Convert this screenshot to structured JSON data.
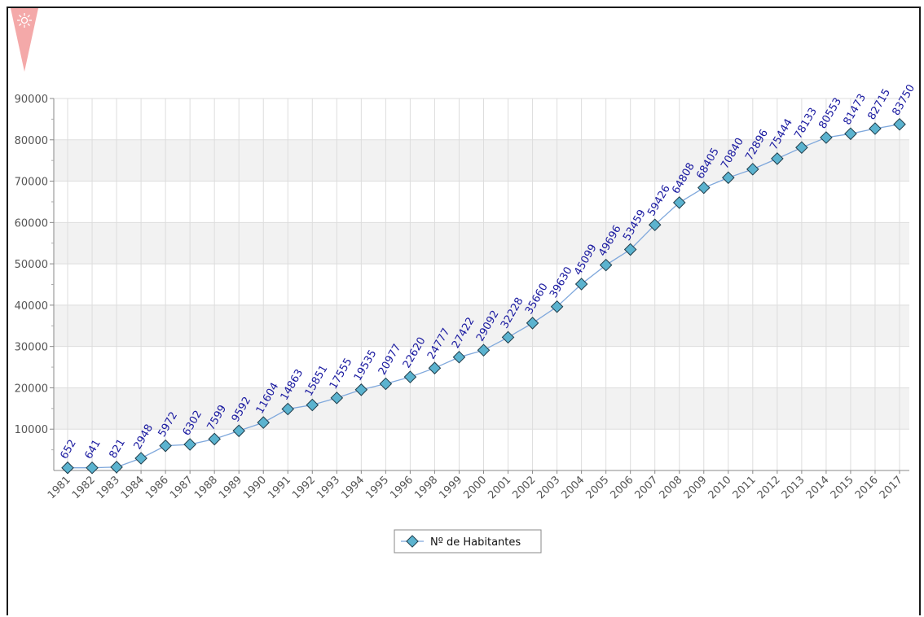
{
  "chart_data": {
    "type": "line",
    "categories": [
      "1981",
      "1982",
      "1983",
      "1984",
      "1986",
      "1987",
      "1988",
      "1989",
      "1990",
      "1991",
      "1992",
      "1993",
      "1994",
      "1995",
      "1996",
      "1998",
      "1999",
      "2000",
      "2001",
      "2002",
      "2003",
      "2004",
      "2005",
      "2006",
      "2007",
      "2008",
      "2009",
      "2010",
      "2011",
      "2012",
      "2013",
      "2014",
      "2015",
      "2016",
      "2017"
    ],
    "series": [
      {
        "name": "Nº de Habitantes",
        "values": [
          652,
          641,
          821,
          2948,
          5972,
          6302,
          7599,
          9592,
          11604,
          14863,
          15851,
          17555,
          19535,
          20977,
          22620,
          24777,
          27422,
          29092,
          32228,
          35660,
          39630,
          45099,
          49696,
          53459,
          59426,
          64808,
          68405,
          70840,
          72896,
          75444,
          78133,
          80553,
          81473,
          82715,
          83750
        ]
      }
    ],
    "yticks": [
      "90000",
      "80000",
      "70000",
      "60000",
      "50000",
      "40000",
      "30000",
      "20000",
      "10000"
    ],
    "ylim": [
      0,
      90000
    ],
    "title": "",
    "xlabel": "",
    "ylabel": "",
    "grid": true,
    "legend_position": "bottom-center",
    "colors": {
      "line": "#7fa8dc",
      "marker_fill": "#5bb3cf",
      "marker_stroke": "#1f3c4a",
      "band": "#f2f2f2",
      "grid": "#dddddd",
      "data_label": "#1a1aa0",
      "logo": "#f4a9a9"
    }
  }
}
